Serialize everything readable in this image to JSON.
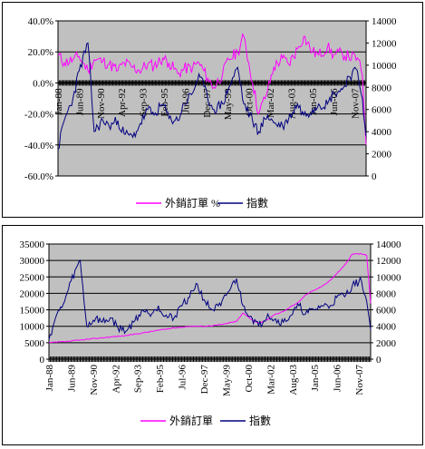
{
  "colors": {
    "orders": "#ff00ff",
    "index": "#000080",
    "plot_bg": "#c0c0c0",
    "grid": "#000000"
  },
  "chart_data": [
    {
      "type": "line",
      "title": "",
      "xlabel": "",
      "ylabel": "",
      "y_left_ticks": [
        "40.0%",
        "20.0%",
        "0.0%",
        "-20.0%",
        "-40.0%",
        "-60.0%"
      ],
      "y_left_lim": [
        -60,
        40
      ],
      "y_right_ticks": [
        "14000",
        "12000",
        "10000",
        "8000",
        "6000",
        "4000",
        "2000",
        "0"
      ],
      "y_right_lim": [
        0,
        14000
      ],
      "x_ticks": [
        "Jan-88",
        "Jun-89",
        "Nov-90",
        "Apr-92",
        "Sep-93",
        "Feb-95",
        "Jul-96",
        "Dec-97",
        "May-99",
        "Oct-00",
        "Mar-02",
        "Aug-03",
        "Jan-05",
        "Jun-06",
        "Nov-07"
      ],
      "x_range": [
        "Jan-88",
        "Aug-08"
      ],
      "grid": "horizontal",
      "legend": "bottom",
      "series": [
        {
          "name": "外銷訂單 %",
          "axis": "left",
          "x": [
            "Jan-88",
            "Jun-88",
            "Jan-89",
            "Jun-89",
            "Jan-90",
            "Jun-90",
            "Jan-91",
            "Jun-91",
            "Jan-92",
            "Jun-92",
            "Jan-93",
            "Jun-93",
            "Jan-94",
            "Jun-94",
            "Jan-95",
            "Jun-95",
            "Jan-96",
            "Jun-96",
            "Jan-97",
            "Jun-97",
            "Jan-98",
            "Jun-98",
            "Jan-99",
            "Jun-99",
            "Jan-00",
            "Jun-00",
            "Jan-01",
            "Jun-01",
            "Jan-02",
            "Jun-02",
            "Jan-03",
            "Jun-03",
            "Jan-04",
            "Jun-04",
            "Jan-05",
            "Jun-05",
            "Jan-06",
            "Jun-06",
            "Jan-07",
            "Jun-07",
            "Jan-08",
            "May-08",
            "Aug-08"
          ],
          "y": [
            18,
            13,
            15,
            17,
            8,
            15,
            14,
            12,
            8,
            13,
            10,
            8,
            12,
            11,
            16,
            13,
            6,
            9,
            10,
            13,
            3,
            -3,
            6,
            15,
            20,
            30,
            0,
            -20,
            -5,
            10,
            16,
            12,
            22,
            30,
            20,
            18,
            23,
            18,
            19,
            17,
            16,
            5,
            -40
          ]
        },
        {
          "name": "指數",
          "axis": "right",
          "x": [
            "Jan-88",
            "Jun-88",
            "Jan-89",
            "Jun-89",
            "Jan-90",
            "Jun-90",
            "Jan-91",
            "Jun-91",
            "Jan-92",
            "Jun-92",
            "Jan-93",
            "Jun-93",
            "Jan-94",
            "Jun-94",
            "Jan-95",
            "Jun-95",
            "Jan-96",
            "Jun-96",
            "Jan-97",
            "Jun-97",
            "Jan-98",
            "Jun-98",
            "Jan-99",
            "Jun-99",
            "Jan-00",
            "Jun-00",
            "Jan-01",
            "Jun-01",
            "Jan-02",
            "Jun-02",
            "Jan-03",
            "Jun-03",
            "Jan-04",
            "Jun-04",
            "Jan-05",
            "Jun-05",
            "Jan-06",
            "Jun-06",
            "Jan-07",
            "Jun-07",
            "Jan-08",
            "May-08",
            "Aug-08"
          ],
          "y": [
            2400,
            5000,
            7000,
            9500,
            12000,
            4000,
            5000,
            4500,
            5000,
            3800,
            3500,
            4500,
            6000,
            5500,
            6500,
            5200,
            5000,
            6500,
            7500,
            9200,
            7000,
            6000,
            6500,
            8000,
            9800,
            6500,
            5000,
            4000,
            5500,
            4800,
            4500,
            5200,
            6500,
            5500,
            6000,
            6500,
            6500,
            7500,
            7800,
            9000,
            9500,
            7000,
            3600
          ]
        }
      ]
    },
    {
      "type": "line",
      "title": "",
      "xlabel": "",
      "ylabel": "",
      "y_left_ticks": [
        "35000",
        "30000",
        "25000",
        "20000",
        "15000",
        "10000",
        "5000",
        "0"
      ],
      "y_left_lim": [
        0,
        35000
      ],
      "y_right_ticks": [
        "14000",
        "12000",
        "10000",
        "8000",
        "6000",
        "4000",
        "2000",
        "0"
      ],
      "y_right_lim": [
        0,
        14000
      ],
      "x_ticks": [
        "Jan-88",
        "Jun-89",
        "Nov-90",
        "Apr-92",
        "Sep-93",
        "Feb-95",
        "Jul-96",
        "Dec-97",
        "May-99",
        "Oct-00",
        "Mar-02",
        "Aug-03",
        "Jan-05",
        "Jun-06",
        "Nov-07"
      ],
      "x_range": [
        "Jan-88",
        "Aug-08"
      ],
      "grid": "horizontal",
      "legend": "bottom",
      "series": [
        {
          "name": "外銷訂單",
          "axis": "left",
          "x": [
            "Jan-88",
            "Jan-89",
            "Jan-90",
            "Jan-91",
            "Jan-92",
            "Jan-93",
            "Jan-94",
            "Jan-95",
            "Jan-96",
            "Jan-97",
            "Jan-98",
            "Jan-99",
            "Jan-00",
            "Jun-00",
            "Jan-01",
            "Jun-01",
            "Jan-02",
            "Jun-02",
            "Jan-03",
            "Jan-04",
            "Jun-04",
            "Jan-05",
            "Jun-05",
            "Jan-06",
            "Jun-06",
            "Jan-07",
            "Jun-07",
            "Jan-08",
            "May-08",
            "Aug-08"
          ],
          "y": [
            5000,
            5300,
            5800,
            6300,
            6800,
            7200,
            8000,
            8800,
            9500,
            10000,
            10000,
            10500,
            11500,
            14000,
            12000,
            11000,
            12000,
            13500,
            14500,
            17500,
            19500,
            21000,
            22000,
            24000,
            26000,
            29000,
            32000,
            32000,
            31500,
            17000
          ]
        },
        {
          "name": "指數",
          "axis": "right",
          "x": [
            "Jan-88",
            "Jun-88",
            "Jan-89",
            "Jun-89",
            "Jan-90",
            "Jun-90",
            "Jan-91",
            "Jun-91",
            "Jan-92",
            "Jun-92",
            "Jan-93",
            "Jun-93",
            "Jan-94",
            "Jun-94",
            "Jan-95",
            "Jun-95",
            "Jan-96",
            "Jun-96",
            "Jan-97",
            "Jun-97",
            "Jan-98",
            "Jun-98",
            "Jan-99",
            "Jun-99",
            "Jan-00",
            "Jun-00",
            "Jan-01",
            "Jun-01",
            "Jan-02",
            "Jun-02",
            "Jan-03",
            "Jun-03",
            "Jan-04",
            "Jun-04",
            "Jan-05",
            "Jun-05",
            "Jan-06",
            "Jun-06",
            "Jan-07",
            "Jun-07",
            "Jan-08",
            "May-08",
            "Aug-08"
          ],
          "y": [
            2400,
            5000,
            7000,
            9500,
            12000,
            4000,
            5000,
            4500,
            5000,
            3800,
            3500,
            4500,
            6000,
            5500,
            6500,
            5200,
            5000,
            6500,
            7500,
            9200,
            7000,
            6000,
            6500,
            8000,
            9800,
            6500,
            5000,
            4000,
            5500,
            4800,
            4500,
            5200,
            6500,
            5500,
            6000,
            6500,
            6500,
            7500,
            7800,
            9000,
            9500,
            7000,
            3600
          ]
        }
      ]
    }
  ]
}
